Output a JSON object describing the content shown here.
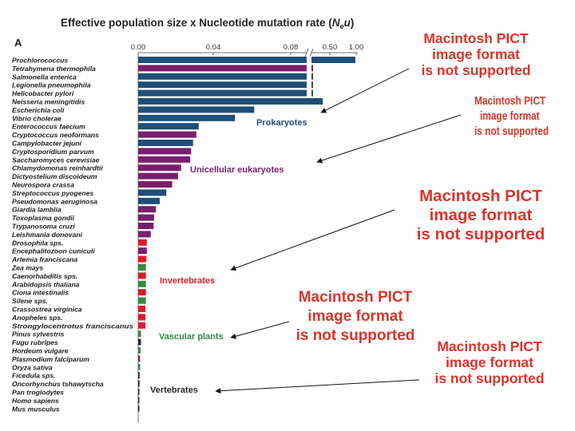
{
  "title": "Effective population size x Nucleotide mutation rate (Ne u)",
  "title_parts": {
    "prefix": "Effective population size x Nucleotide mutation rate (",
    "N": "N",
    "sub": "e",
    "u": "u",
    "suffix": ")"
  },
  "panel_label": "A",
  "pict_placeholder": {
    "line1": "Macintosh PICT",
    "line2": "image format",
    "line3": "is not supported"
  },
  "colors": {
    "Prokaryotes": "#1f4e79",
    "Unicellular eukaryotes": "#7a1f6e",
    "Invertebrates": "#e0182d",
    "Vascular plants": "#2e8b3e",
    "Vertebrates": "#2a2a2a",
    "pict_text": "#d9342b"
  },
  "chart_data": {
    "type": "bar",
    "orientation": "horizontal",
    "title": "Effective population size x Nucleotide mutation rate (Ne u)",
    "x_ticks": [
      "0.00",
      "0.04",
      "0.08",
      "0.50",
      "1.00"
    ],
    "x_axis_break": "between 0.08 and 0.50",
    "group_labels": [
      "Prokaryotes",
      "Unicellular eukaryotes",
      "Invertebrates",
      "Vascular plants",
      "Vertebrates"
    ],
    "species": [
      {
        "name": "Prochlorococcus",
        "value": 1.0,
        "group": "Prokaryotes"
      },
      {
        "name": "Tetrahymena thermophila",
        "value": 0.12,
        "group": "Unicellular eukaryotes"
      },
      {
        "name": "Salmonella enterica",
        "value": 0.11,
        "group": "Prokaryotes"
      },
      {
        "name": "Legionella pneumophila",
        "value": 0.11,
        "group": "Prokaryotes"
      },
      {
        "name": "Helicobacter pylori",
        "value": 0.11,
        "group": "Prokaryotes"
      },
      {
        "name": "Neisseria meningitidis",
        "value": 0.0787,
        "group": "Prokaryotes"
      },
      {
        "name": "Escherichia coli",
        "value": 0.0495,
        "group": "Prokaryotes"
      },
      {
        "name": "Vibrio cholerae",
        "value": 0.0413,
        "group": "Prokaryotes"
      },
      {
        "name": "Enterococcus faecium",
        "value": 0.0258,
        "group": "Prokaryotes"
      },
      {
        "name": "Cryptococcus neoformans",
        "value": 0.0248,
        "group": "Unicellular eukaryotes"
      },
      {
        "name": "Campylobacter jejuni",
        "value": 0.0234,
        "group": "Prokaryotes"
      },
      {
        "name": "Cryptosporidium parvum",
        "value": 0.0226,
        "group": "Unicellular eukaryotes"
      },
      {
        "name": "Saccharomyces cerevisiae",
        "value": 0.0222,
        "group": "Unicellular eukaryotes"
      },
      {
        "name": "Chlamydomonas reinhardtii",
        "value": 0.0183,
        "group": "Unicellular eukaryotes"
      },
      {
        "name": "Dictyostelium discoideum",
        "value": 0.017,
        "group": "Unicellular eukaryotes"
      },
      {
        "name": "Neurospora crassa",
        "value": 0.0145,
        "group": "Unicellular eukaryotes"
      },
      {
        "name": "Streptococcus pyogenes",
        "value": 0.012,
        "group": "Prokaryotes"
      },
      {
        "name": "Pseudomonas aeruginosa",
        "value": 0.0092,
        "group": "Prokaryotes"
      },
      {
        "name": "Giardia lamblia",
        "value": 0.0076,
        "group": "Unicellular eukaryotes"
      },
      {
        "name": "Toxoplasma gondii",
        "value": 0.0068,
        "group": "Unicellular eukaryotes"
      },
      {
        "name": "Trypanosoma cruzi",
        "value": 0.0066,
        "group": "Unicellular eukaryotes"
      },
      {
        "name": "Leishmania donovani",
        "value": 0.0054,
        "group": "Unicellular eukaryotes"
      },
      {
        "name": "Drosophila sps.",
        "value": 0.0037,
        "group": "Invertebrates"
      },
      {
        "name": "Encephalitozoon cuniculi",
        "value": 0.0037,
        "group": "Unicellular eukaryotes"
      },
      {
        "name": "Artemia franciscana",
        "value": 0.0035,
        "group": "Invertebrates"
      },
      {
        "name": "Zea mays",
        "value": 0.0033,
        "group": "Vascular plants"
      },
      {
        "name": "Caenorhabditis sps.",
        "value": 0.0033,
        "group": "Invertebrates"
      },
      {
        "name": "Arabidopsis thaliana",
        "value": 0.0033,
        "group": "Vascular plants"
      },
      {
        "name": "Ciona intestinalis",
        "value": 0.0033,
        "group": "Invertebrates"
      },
      {
        "name": "Silene sps.",
        "value": 0.0033,
        "group": "Vascular plants"
      },
      {
        "name": "Crassostrea virginica",
        "value": 0.0031,
        "group": "Invertebrates"
      },
      {
        "name": "Anopheles sps.",
        "value": 0.0031,
        "group": "Invertebrates"
      },
      {
        "name": "Strongylocentrotus franciscanus",
        "value": 0.0031,
        "group": "Invertebrates"
      },
      {
        "name": "Pinus sylvestris",
        "value": 0.0012,
        "group": "Vascular plants"
      },
      {
        "name": "Fugu rubripes",
        "value": 0.0012,
        "group": "Vertebrates"
      },
      {
        "name": "Hordeum vulgare",
        "value": 0.001,
        "group": "Vascular plants"
      },
      {
        "name": "Plasmodium falciparum",
        "value": 0.0008,
        "group": "Unicellular eukaryotes"
      },
      {
        "name": "Oryza sativa",
        "value": 0.0008,
        "group": "Vascular plants"
      },
      {
        "name": "Ficedula sps.",
        "value": 0.0006,
        "group": "Vertebrates"
      },
      {
        "name": "Oncorhynchus tshawytscha",
        "value": 0.0006,
        "group": "Vertebrates"
      },
      {
        "name": "Pan troglodytes",
        "value": 0.0004,
        "group": "Vertebrates"
      },
      {
        "name": "Homo sapiens",
        "value": 0.0004,
        "group": "Vertebrates"
      },
      {
        "name": "Mus musculus",
        "value": 0.0004,
        "group": "Vertebrates"
      }
    ]
  }
}
